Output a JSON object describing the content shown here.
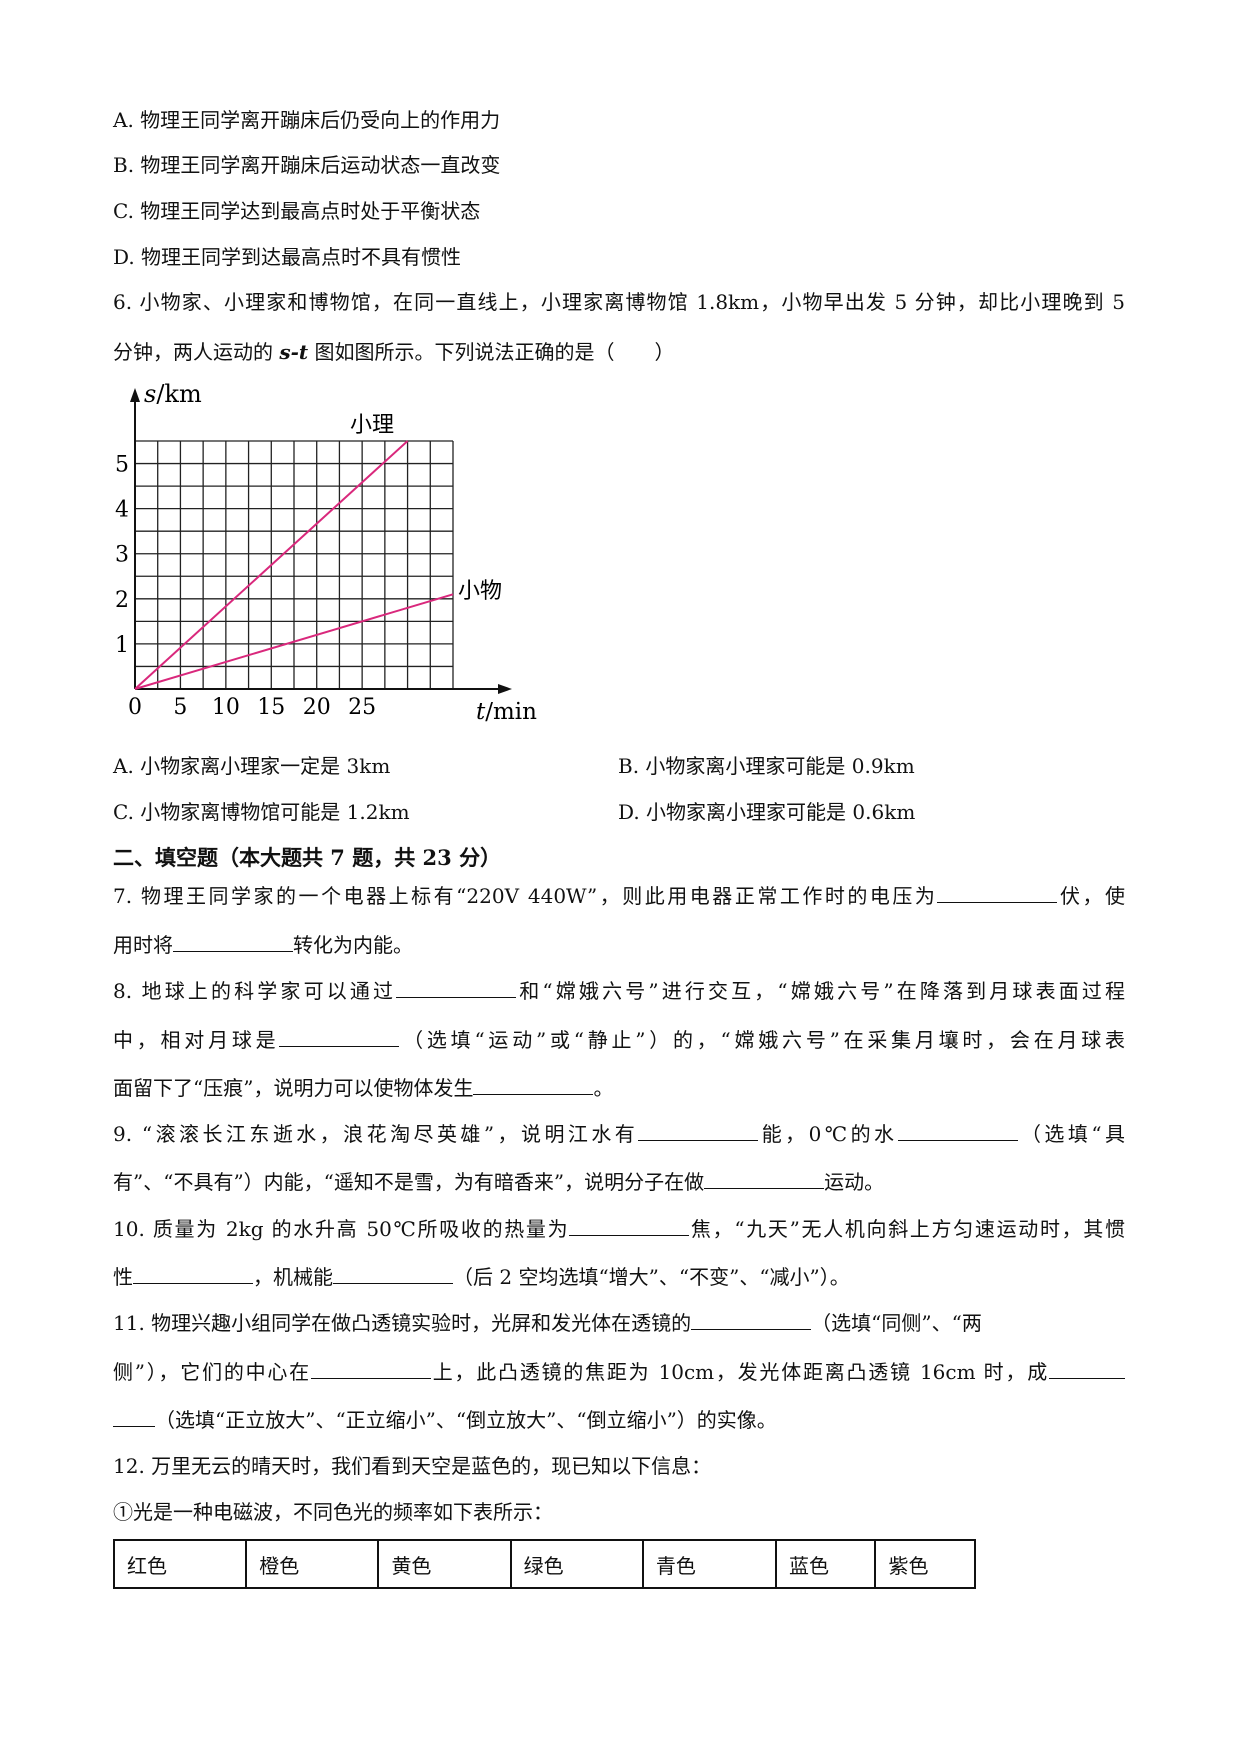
{
  "q5_options": [
    "A. 物理王同学离开蹦床后仍受向上的作用力",
    "B. 物理王同学离开蹦床后运动状态一直改变",
    "C. 物理王同学达到最高点时处于平衡状态",
    "D. 物理王同学到达最高点时不具有惯性"
  ],
  "q6": {
    "line1": "6. 小物家、小理家和博物馆，在同一直线上，小理家离博物馆 1.8km，小物早出发 5 分钟，却比小理晚到 5",
    "line2_pre": "分钟，两人运动的 ",
    "line2_italic": "s-t",
    "line2_post": " 图如图所示。下列说法正确的是（　　）",
    "options": [
      "A. 小物家离小理家一定是 3km",
      "B. 小物家离小理家可能是 0.9km",
      "C. 小物家离博物馆可能是 1.2km",
      "D. 小物家离小理家可能是 0.6km"
    ]
  },
  "chart_data": {
    "type": "line",
    "ylabel_var": "s",
    "ylabel_unit": "/km",
    "xlabel_var": "t",
    "xlabel_unit": "/min",
    "x_ticks": [
      0,
      5,
      10,
      15,
      20,
      25
    ],
    "y_ticks": [
      1,
      2,
      3,
      4,
      5
    ],
    "xlim": [
      0,
      35
    ],
    "ylim": [
      0,
      5.5
    ],
    "grid": true,
    "grid_step": {
      "x": 2.5,
      "y": 0.5
    },
    "line_color": "#d9287c",
    "series": [
      {
        "name": "小理",
        "x": [
          0,
          30
        ],
        "y": [
          0,
          5.5
        ]
      },
      {
        "name": "小物",
        "x": [
          0,
          35
        ],
        "y": [
          0,
          2.1
        ]
      }
    ]
  },
  "section2_title": "二、填空题（本大题共 7 题，共 23 分）",
  "fill_lines": [
    {
      "top": 884,
      "just": true,
      "parts": [
        "7. 物理王同学家的一个电器上标有“220V  440W”，则此用电器正常工作时的电压为",
        {
          "blank": 120
        },
        "伏，使"
      ]
    },
    {
      "top": 933,
      "just": false,
      "parts": [
        "用时将",
        {
          "blank": 120
        },
        "转化为内能。"
      ]
    },
    {
      "top": 979,
      "just": true,
      "parts": [
        "8. 地球上的科学家可以通过",
        {
          "blank": 120
        },
        "和“嫦娥六号”进行交互，“嫦娥六号”在降落到月球表面过程"
      ]
    },
    {
      "top": 1028,
      "just": true,
      "parts": [
        "中，相对月球是",
        {
          "blank": 120
        },
        "（选填“运动”或“静止”）的，“嫦娥六号”在采集月壤时，会在月球表"
      ]
    },
    {
      "top": 1076,
      "just": false,
      "parts": [
        "面留下了“压痕”，说明力可以使物体发生",
        {
          "blank": 120
        },
        "。"
      ]
    },
    {
      "top": 1122,
      "just": true,
      "parts": [
        "9. “滚滚长江东逝水，浪花淘尽英雄”，说明江水有",
        {
          "blank": 120
        },
        "能，0℃的水",
        {
          "blank": 120
        },
        "（选填“具"
      ]
    },
    {
      "top": 1170,
      "just": false,
      "parts": [
        "有”、“不具有”）内能，“遥知不是雪，为有暗香来”，说明分子在做",
        {
          "blank": 120
        },
        "运动。"
      ]
    },
    {
      "top": 1217,
      "just": true,
      "parts": [
        "10. 质量为 2kg 的水升高 50℃所吸收的热量为",
        {
          "blank": 120
        },
        "焦，“九天”无人机向斜上方匀速运动时，其惯"
      ]
    },
    {
      "top": 1265,
      "just": false,
      "parts": [
        "性",
        {
          "blank": 120
        },
        "，机械能",
        {
          "blank": 120
        },
        "（后 2 空均选填“增大”、“不变”、“减小”）。"
      ]
    },
    {
      "top": 1311,
      "just": false,
      "parts": [
        "11. 物理兴趣小组同学在做凸透镜实验时，光屏和发光体在透镜的",
        {
          "blank": 120
        },
        "（选填“同侧”、“两"
      ]
    },
    {
      "top": 1360,
      "just": true,
      "parts": [
        "侧”），它们的中心在",
        {
          "blank": 120
        },
        "上，此凸透镜的焦距为 10cm，发光体距离凸透镜 16cm 时，成",
        {
          "blank": 76
        }
      ]
    },
    {
      "top": 1408,
      "just": false,
      "parts": [
        {
          "blank": 42
        },
        "（选填“正立放大”、“正立缩小”、“倒立放大”、“倒立缩小”）的实像。"
      ]
    },
    {
      "top": 1454,
      "just": false,
      "parts": [
        "12. 万里无云的晴天时，我们看到天空是蓝色的，现已知以下信息："
      ]
    },
    {
      "top": 1500,
      "just": false,
      "parts": [
        "①光是一种电磁波，不同色光的频率如下表所示："
      ]
    }
  ],
  "color_table": [
    "红色",
    "橙色",
    "黄色",
    "绿色",
    "青色",
    "蓝色",
    "紫色"
  ]
}
